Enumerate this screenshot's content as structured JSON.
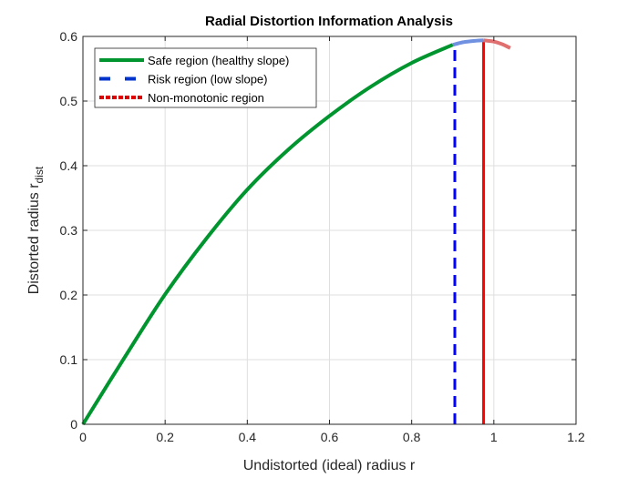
{
  "chart_data": {
    "type": "line",
    "title": "Radial Distortion Information Analysis",
    "xlabel": "Undistorted (ideal) radius r",
    "ylabel": "Distorted radius r",
    "ylabel_subscript": "dist",
    "xlim": [
      0,
      1.2
    ],
    "ylim": [
      0,
      0.6
    ],
    "xticks": [
      0,
      0.2,
      0.4,
      0.6,
      0.8,
      1,
      1.2
    ],
    "xtick_labels": [
      "0",
      "0.2",
      "0.4",
      "0.6",
      "0.8",
      "1",
      "1.2"
    ],
    "yticks": [
      0,
      0.1,
      0.2,
      0.3,
      0.4,
      0.5,
      0.6
    ],
    "ytick_labels": [
      "0",
      "0.1",
      "0.2",
      "0.3",
      "0.4",
      "0.5",
      "0.6"
    ],
    "grid": true,
    "legend_position": "top-left",
    "series": [
      {
        "name": "Safe region (healthy slope)",
        "color": "#00952f",
        "style": "solid",
        "x": [
          0,
          0.1,
          0.2,
          0.3,
          0.4,
          0.5,
          0.6,
          0.7,
          0.8,
          0.9
        ],
        "y": [
          0,
          0.102,
          0.201,
          0.287,
          0.363,
          0.425,
          0.477,
          0.522,
          0.559,
          0.587
        ]
      },
      {
        "name": "Risk region (low slope)",
        "color": "#0033cc",
        "style": "dashed",
        "plot_color": "#7090e0",
        "x": [
          0.9,
          0.925,
          0.95,
          0.975
        ],
        "y": [
          0.587,
          0.591,
          0.593,
          0.594
        ]
      },
      {
        "name": "Non-monotonic region",
        "color": "#dd0000",
        "style": "dotted",
        "plot_color": "#e07070",
        "x": [
          0.975,
          1.0,
          1.02,
          1.04
        ],
        "y": [
          0.594,
          0.592,
          0.588,
          0.582
        ]
      }
    ],
    "vlines": [
      {
        "x": 0.905,
        "y_top": 0.587,
        "color": "#0000ff",
        "style": "dashed"
      },
      {
        "x": 0.975,
        "y_top": 0.594,
        "color": "#ff0000",
        "style": "solid"
      }
    ]
  }
}
